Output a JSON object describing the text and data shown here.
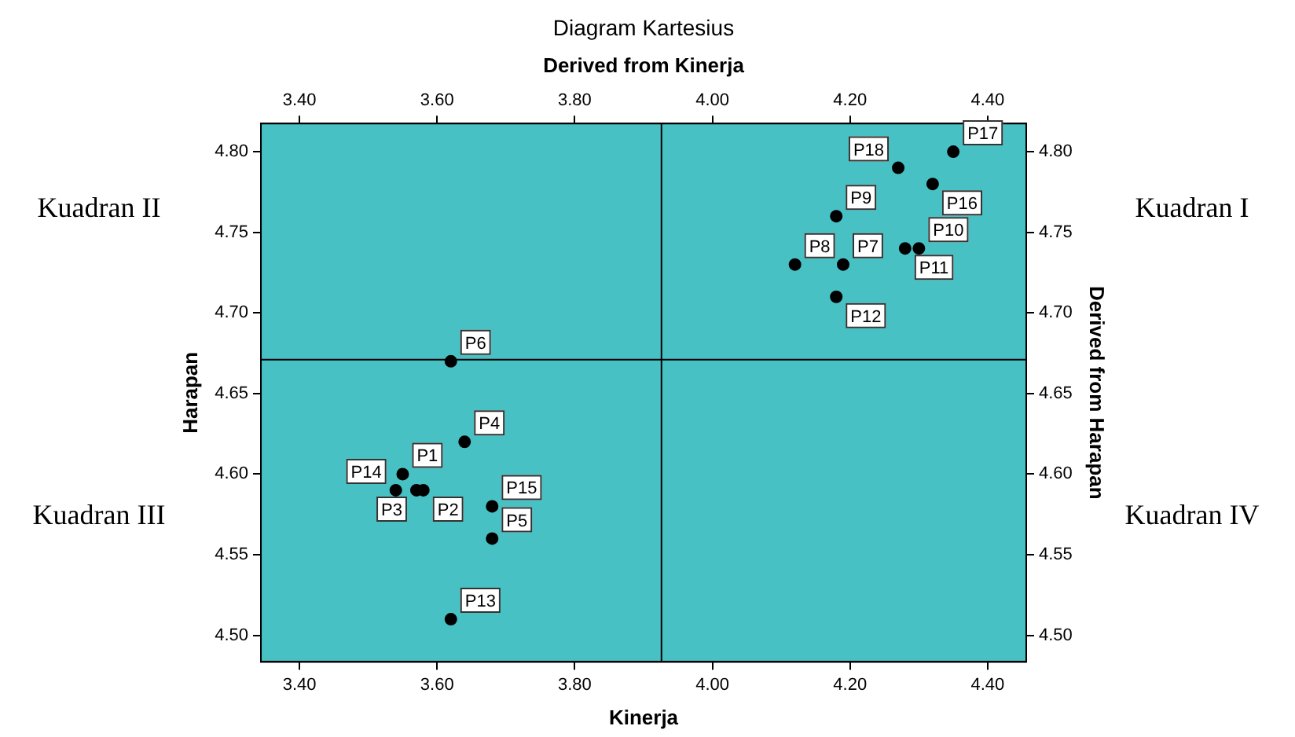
{
  "chart_data": {
    "type": "scatter",
    "title": "Diagram Kartesius",
    "xlabel": "Kinerja",
    "ylabel": "Harapan",
    "x2label": "Derived from Kinerja",
    "y2label": "Derived from Harapan",
    "series": [
      {
        "color": "#000000",
        "x": [
          3.55,
          3.58,
          3.57,
          3.64,
          3.68,
          3.62,
          4.19,
          4.12,
          4.18,
          4.3,
          4.28,
          4.18,
          3.62,
          3.54,
          3.68,
          4.32,
          4.35,
          4.27
        ],
        "values": [
          4.6,
          4.59,
          4.59,
          4.62,
          4.56,
          4.67,
          4.73,
          4.73,
          4.76,
          4.74,
          4.74,
          4.71,
          4.51,
          4.59,
          4.58,
          4.78,
          4.8,
          4.79
        ]
      }
    ],
    "marker": "circle",
    "grid": false,
    "legend": false,
    "xlim": [
      3.344,
      4.456
    ],
    "xticks": [
      {
        "value": 3.4,
        "label": "3.40"
      },
      {
        "value": 3.6,
        "label": "3.60"
      },
      {
        "value": 3.8,
        "label": "3.80"
      },
      {
        "value": 4.0,
        "label": "4.00"
      },
      {
        "value": 4.2,
        "label": "4.20"
      },
      {
        "value": 4.4,
        "label": "4.40"
      }
    ],
    "x2lim": [
      3.344,
      4.456
    ],
    "x2ticks": [
      {
        "value": 3.4,
        "label": "3.40"
      },
      {
        "value": 3.6,
        "label": "3.60"
      },
      {
        "value": 3.8,
        "label": "3.80"
      },
      {
        "value": 4.0,
        "label": "4.00"
      },
      {
        "value": 4.2,
        "label": "4.20"
      },
      {
        "value": 4.4,
        "label": "4.40"
      }
    ],
    "ylim": [
      4.4835,
      4.8175
    ],
    "yticks": [
      {
        "value": 4.5,
        "label": "4.50"
      },
      {
        "value": 4.55,
        "label": "4.55"
      },
      {
        "value": 4.6,
        "label": "4.60"
      },
      {
        "value": 4.65,
        "label": "4.65"
      },
      {
        "value": 4.7,
        "label": "4.70"
      },
      {
        "value": 4.75,
        "label": "4.75"
      },
      {
        "value": 4.8,
        "label": "4.80"
      }
    ],
    "y2lim": [
      4.4835,
      4.8175
    ],
    "y2ticks": [
      {
        "value": 4.5,
        "label": "4.50"
      },
      {
        "value": 4.55,
        "label": "4.55"
      },
      {
        "value": 4.6,
        "label": "4.60"
      },
      {
        "value": 4.65,
        "label": "4.65"
      },
      {
        "value": 4.7,
        "label": "4.70"
      },
      {
        "value": 4.75,
        "label": "4.75"
      },
      {
        "value": 4.8,
        "label": "4.80"
      }
    ],
    "ref_lines": [
      {
        "axis": "x",
        "value": 3.926,
        "color": "#000000"
      },
      {
        "axis": "y",
        "value": 4.671,
        "color": "#000000"
      }
    ],
    "annotations": [
      "Kuadran II",
      "Kuadran I",
      "Kuadran III",
      "Kuadran IV",
      {
        "text": "P1",
        "x": 3.55,
        "y": 4.6
      },
      {
        "text": "P2",
        "x": 3.58,
        "y": 4.59
      },
      {
        "text": "P3",
        "x": 3.57,
        "y": 4.59
      },
      {
        "text": "P4",
        "x": 3.64,
        "y": 4.62
      },
      {
        "text": "P5",
        "x": 3.68,
        "y": 4.56
      },
      {
        "text": "P6",
        "x": 3.62,
        "y": 4.67
      },
      {
        "text": "P7",
        "x": 4.19,
        "y": 4.73
      },
      {
        "text": "P8",
        "x": 4.12,
        "y": 4.73
      },
      {
        "text": "P9",
        "x": 4.18,
        "y": 4.76
      },
      {
        "text": "P10",
        "x": 4.3,
        "y": 4.74
      },
      {
        "text": "P11",
        "x": 4.28,
        "y": 4.74
      },
      {
        "text": "P12",
        "x": 4.18,
        "y": 4.71
      },
      {
        "text": "P13",
        "x": 3.62,
        "y": 4.51
      },
      {
        "text": "P14",
        "x": 3.54,
        "y": 4.59
      },
      {
        "text": "P15",
        "x": 3.68,
        "y": 4.58
      },
      {
        "text": "P16",
        "x": 4.32,
        "y": 4.78
      },
      {
        "text": "P17",
        "x": 4.35,
        "y": 4.8
      },
      {
        "text": "P18",
        "x": 4.27,
        "y": 4.79
      }
    ]
  }
}
